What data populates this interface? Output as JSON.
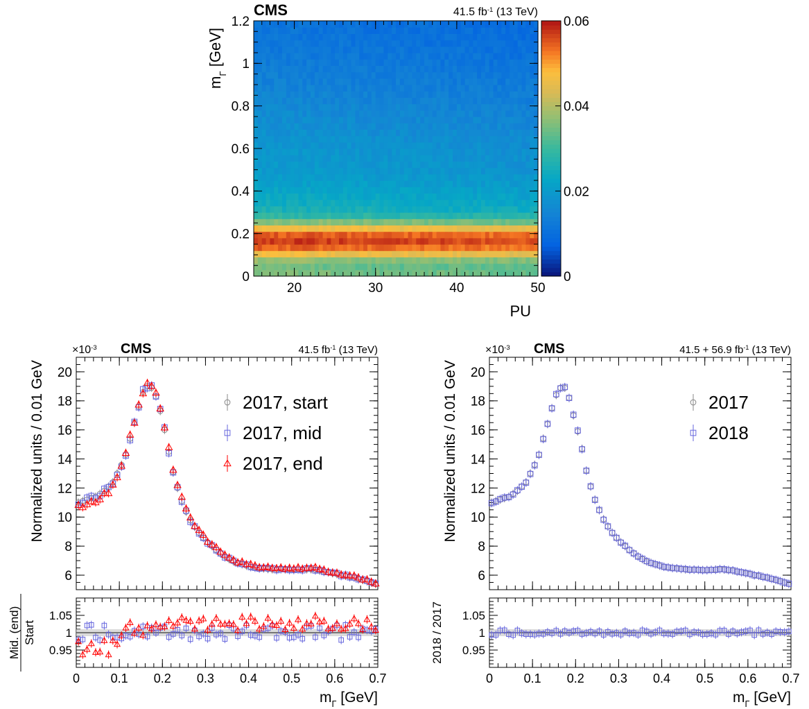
{
  "chart_data": [
    {
      "type": "heatmap",
      "header": {
        "experiment": "CMS",
        "lumi": "41.5 fb",
        "lumi_sup": "-1",
        "energy": " (13 TeV)"
      },
      "xlabel": "PU",
      "ylabel": "m",
      "ylabel_sub": "Γ",
      "ylabel_unit": " [GeV]",
      "xlim": [
        15,
        50
      ],
      "ylim": [
        0,
        1.2
      ],
      "zlim": [
        0,
        0.06
      ],
      "xticks": [
        20,
        30,
        40,
        50
      ],
      "yticks": [
        0,
        0.2,
        0.4,
        0.6,
        0.8,
        1,
        1.2
      ],
      "zticks": [
        0,
        0.02,
        0.04,
        0.06
      ],
      "bins_x": 70,
      "bins_y": 40,
      "y_profile": {
        "mass": [
          0.0,
          0.03,
          0.06,
          0.09,
          0.12,
          0.15,
          0.18,
          0.21,
          0.24,
          0.27,
          0.3,
          0.33,
          0.36,
          0.39,
          0.42,
          0.45,
          0.5,
          0.6,
          0.8,
          1.0,
          1.2
        ],
        "value": [
          0.036,
          0.035,
          0.034,
          0.041,
          0.052,
          0.057,
          0.058,
          0.052,
          0.042,
          0.031,
          0.027,
          0.025,
          0.024,
          0.023,
          0.022,
          0.021,
          0.02,
          0.019,
          0.016,
          0.013,
          0.011
        ]
      },
      "colormap": "kBird"
    },
    {
      "type": "scatter",
      "header": {
        "experiment": "CMS",
        "lumi": "41.5 fb",
        "lumi_sup": "-1",
        "energy": " (13 TeV)"
      },
      "exponent": "×10",
      "exponent_sup": "-3",
      "ylabel": "Normalized units / 0.01 GeV",
      "xlabel": "m",
      "xlabel_sub": "Γ",
      "xlabel_unit": " [GeV]",
      "ratio_ylabel_top": "Mid. (end)",
      "ratio_ylabel_bottom": "Start",
      "xlim": [
        0,
        0.7
      ],
      "ylim": [
        5,
        21
      ],
      "ratio_ylim": [
        0.9,
        1.1
      ],
      "xticks": [
        0,
        0.1,
        0.2,
        0.3,
        0.4,
        0.5,
        0.6,
        0.7
      ],
      "yticks": [
        6,
        8,
        10,
        12,
        14,
        16,
        18,
        20
      ],
      "ratio_yticks": [
        0.95,
        1,
        1.05
      ],
      "legend_position": "top-right",
      "series": [
        {
          "name": "2017, start",
          "marker": "circle",
          "color": "#888888"
        },
        {
          "name": "2017, mid",
          "marker": "square",
          "color": "#6666dd"
        },
        {
          "name": "2017, end",
          "marker": "triangle",
          "color": "#ff0000"
        }
      ],
      "reference_curve": {
        "x": [
          0.005,
          0.025,
          0.045,
          0.065,
          0.085,
          0.105,
          0.115,
          0.125,
          0.135,
          0.145,
          0.155,
          0.165,
          0.175,
          0.185,
          0.195,
          0.205,
          0.215,
          0.225,
          0.235,
          0.245,
          0.26,
          0.28,
          0.3,
          0.33,
          0.36,
          0.4,
          0.45,
          0.5,
          0.55,
          0.6,
          0.65,
          0.695
        ],
        "y": [
          11.0,
          11.2,
          11.4,
          11.8,
          12.4,
          13.6,
          14.3,
          15.4,
          16.5,
          17.6,
          18.6,
          19.0,
          18.9,
          18.3,
          17.3,
          16.0,
          14.5,
          13.1,
          12.0,
          11.1,
          10.0,
          9.1,
          8.4,
          7.6,
          7.0,
          6.6,
          6.4,
          6.4,
          6.4,
          6.1,
          5.8,
          5.4
        ]
      },
      "ratio_offsets": {
        "2017, mid": 0.0,
        "2017, end": 0.012
      }
    },
    {
      "type": "scatter",
      "header": {
        "experiment": "CMS",
        "lumi": "41.5 + 56.9 fb",
        "lumi_sup": "-1",
        "energy": " (13 TeV)"
      },
      "exponent": "×10",
      "exponent_sup": "-3",
      "ylabel": "Normalized units / 0.01 GeV",
      "xlabel": "m",
      "xlabel_sub": "Γ",
      "xlabel_unit": " [GeV]",
      "ratio_ylabel_top": "2018 / 2017",
      "ratio_ylabel_bottom": "",
      "xlim": [
        0,
        0.7
      ],
      "ylim": [
        5,
        21
      ],
      "ratio_ylim": [
        0.9,
        1.1
      ],
      "xticks": [
        0,
        0.1,
        0.2,
        0.3,
        0.4,
        0.5,
        0.6,
        0.7
      ],
      "yticks": [
        6,
        8,
        10,
        12,
        14,
        16,
        18,
        20
      ],
      "ratio_yticks": [
        0.95,
        1,
        1.05
      ],
      "legend_position": "top-right",
      "series": [
        {
          "name": "2017",
          "marker": "circle",
          "color": "#888888"
        },
        {
          "name": "2018",
          "marker": "square",
          "color": "#6666dd"
        }
      ],
      "reference_curve": {
        "x": [
          0.005,
          0.025,
          0.045,
          0.065,
          0.085,
          0.105,
          0.115,
          0.125,
          0.135,
          0.145,
          0.155,
          0.165,
          0.175,
          0.185,
          0.195,
          0.205,
          0.215,
          0.225,
          0.235,
          0.245,
          0.26,
          0.28,
          0.3,
          0.33,
          0.36,
          0.4,
          0.45,
          0.5,
          0.535,
          0.56,
          0.6,
          0.65,
          0.695
        ],
        "y": [
          11.0,
          11.2,
          11.4,
          11.8,
          12.4,
          13.6,
          14.3,
          15.4,
          16.4,
          17.5,
          18.4,
          18.9,
          18.9,
          18.2,
          17.0,
          15.9,
          14.7,
          13.2,
          12.1,
          11.2,
          10.1,
          9.1,
          8.4,
          7.6,
          7.0,
          6.6,
          6.4,
          6.35,
          6.4,
          6.35,
          6.1,
          5.8,
          5.4
        ]
      },
      "ratio_offsets": {
        "2018": 0.0
      }
    }
  ]
}
